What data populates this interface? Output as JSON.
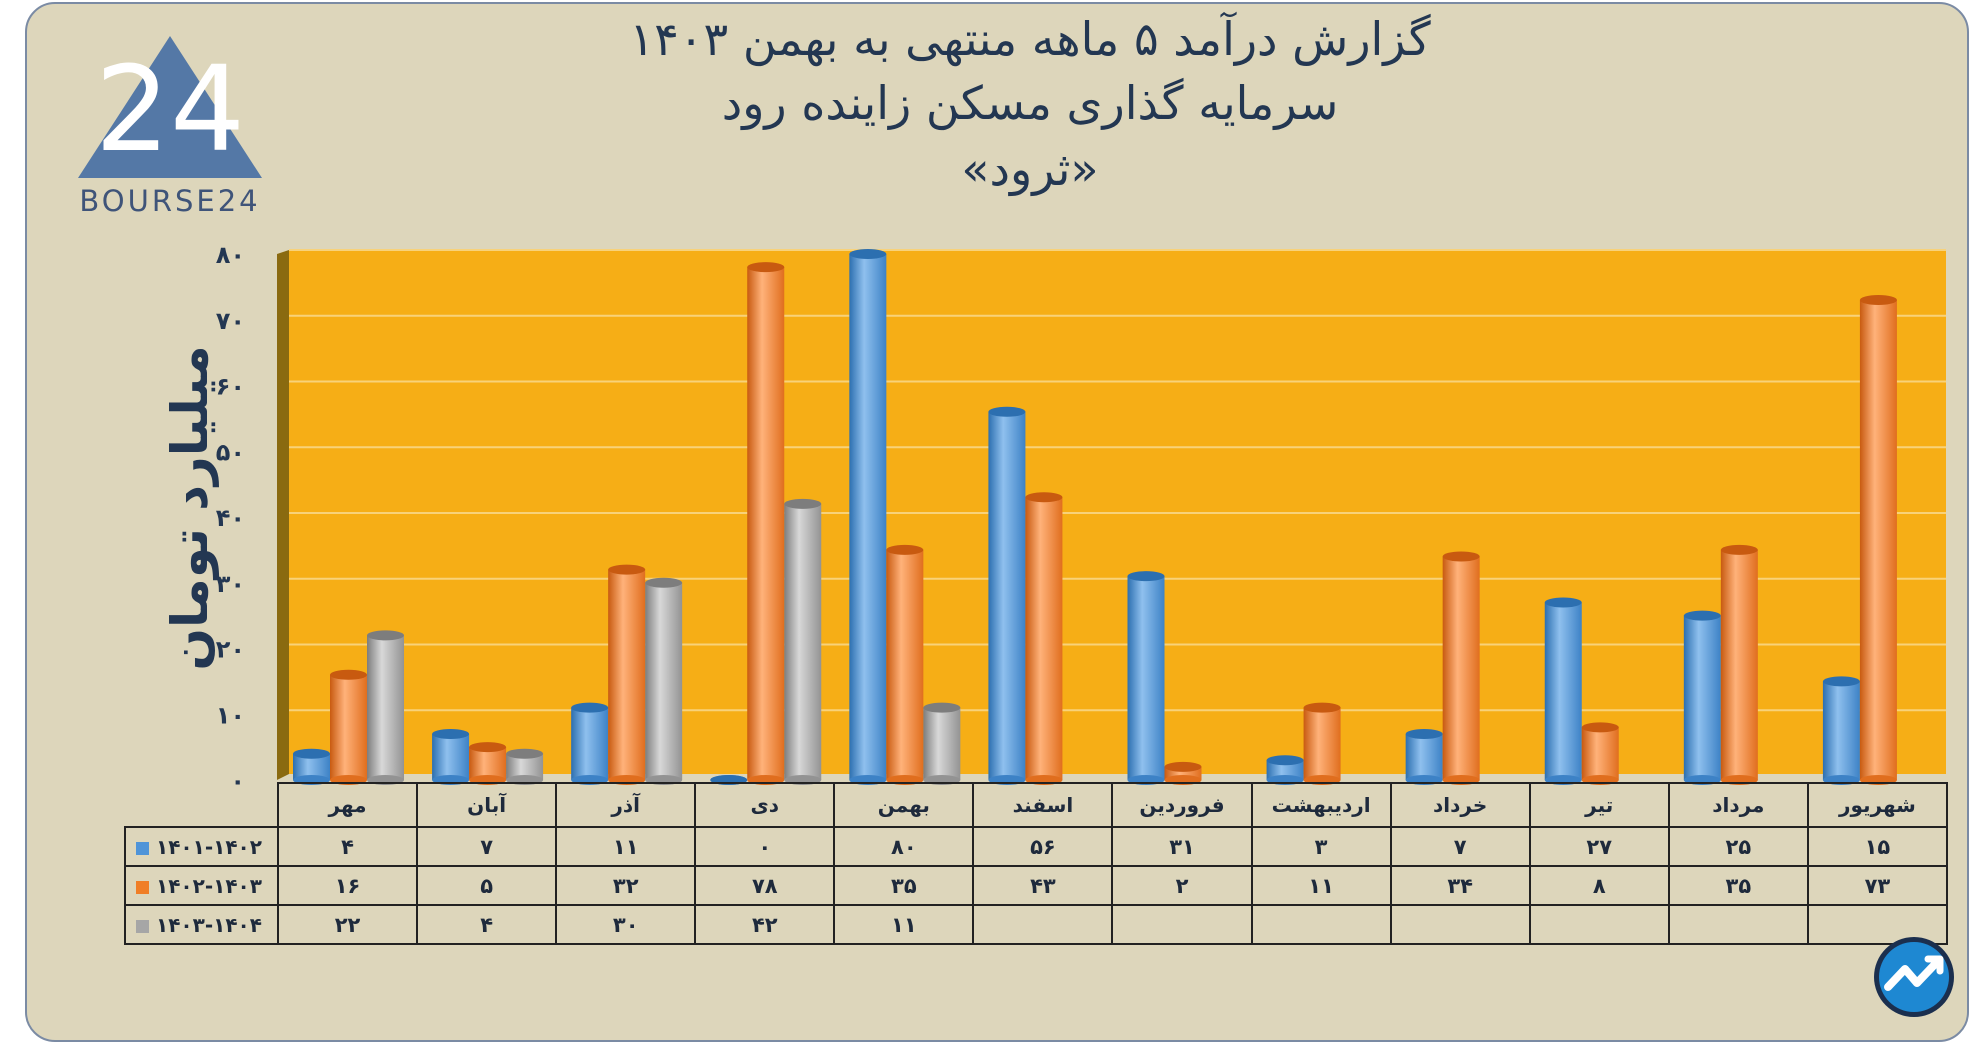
{
  "logo": {
    "text": "BOURSE24",
    "mark": "24"
  },
  "title": {
    "line1": "گزارش  درآمد ۵ ماهه منتهی به بهمن ۱۴۰۳",
    "line2": "سرمایه گذاری مسکن زاینده رود",
    "line3": "«ثرود»"
  },
  "colors": {
    "plot_background": "#f6ae16",
    "frame_background": "#ddd6bb",
    "series_1": "#4f94d8",
    "series_2": "#f07e26",
    "series_3": "#a6a6a6"
  },
  "chart_data": {
    "type": "bar",
    "ylabel": "میلیارد تومان",
    "ylim": [
      0,
      80
    ],
    "yticks": [
      "۰",
      "۱۰",
      "۲۰",
      "۳۰",
      "۴۰",
      "۵۰",
      "۶۰",
      "۷۰",
      "۸۰"
    ],
    "grid": true,
    "categories": [
      "شهریور",
      "مرداد",
      "تیر",
      "خرداد",
      "اردیبهشت",
      "فروردین",
      "اسفند",
      "بهمن",
      "دی",
      "آذر",
      "آبان",
      "مهر"
    ],
    "series": [
      {
        "name": "۱۴۰۱-۱۴۰۲",
        "values": [
          15,
          25,
          27,
          7,
          3,
          31,
          56,
          80,
          0,
          11,
          7,
          4
        ],
        "labels": [
          "۱۵",
          "۲۵",
          "۲۷",
          "۷",
          "۳",
          "۳۱",
          "۵۶",
          "۸۰",
          "۰",
          "۱۱",
          "۷",
          "۴"
        ]
      },
      {
        "name": "۱۴۰۲-۱۴۰۳",
        "values": [
          73,
          35,
          8,
          34,
          11,
          2,
          43,
          35,
          78,
          32,
          5,
          16
        ],
        "labels": [
          "۷۳",
          "۳۵",
          "۸",
          "۳۴",
          "۱۱",
          "۲",
          "۴۳",
          "۳۵",
          "۷۸",
          "۳۲",
          "۵",
          "۱۶"
        ]
      },
      {
        "name": "۱۴۰۳-۱۴۰۴",
        "values": [
          null,
          null,
          null,
          null,
          null,
          null,
          null,
          11,
          42,
          30,
          4,
          22
        ],
        "labels": [
          "",
          "",
          "",
          "",
          "",
          "",
          "",
          "۱۱",
          "۴۲",
          "۳۰",
          "۴",
          "۲۲"
        ]
      }
    ]
  }
}
